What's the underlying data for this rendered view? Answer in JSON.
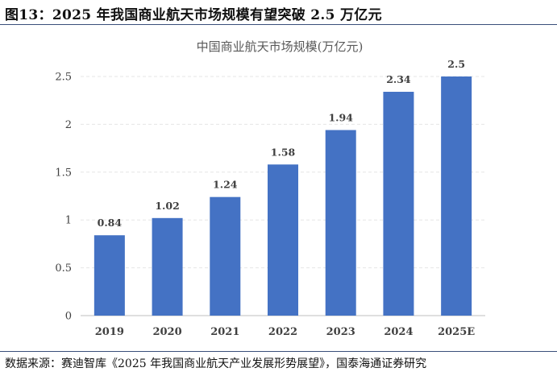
{
  "figure_title": "图13：2025 年我国商业航天市场规模有望突破 2.5 万亿元",
  "source": "数据来源：赛迪智库《2025 年我国商业航天产业发展形势展望》，国泰海通证券研究",
  "chart_data": {
    "type": "bar",
    "title": "中国商业航天市场规模(万亿元)",
    "categories": [
      "2019",
      "2020",
      "2021",
      "2022",
      "2023",
      "2024",
      "2025E"
    ],
    "series": [
      {
        "values": [
          0.84,
          1.02,
          1.24,
          1.58,
          1.94,
          2.34,
          2.5
        ],
        "color": "#4472C4"
      }
    ],
    "data_labels": [
      "0.84",
      "1.02",
      "1.24",
      "1.58",
      "1.94",
      "2.34",
      "2.5"
    ],
    "yticks": [
      "0",
      "0.5",
      "1",
      "1.5",
      "2",
      "2.5"
    ],
    "ylim": [
      0,
      2.5
    ],
    "xlabel": "",
    "ylabel": "",
    "grid": true
  }
}
